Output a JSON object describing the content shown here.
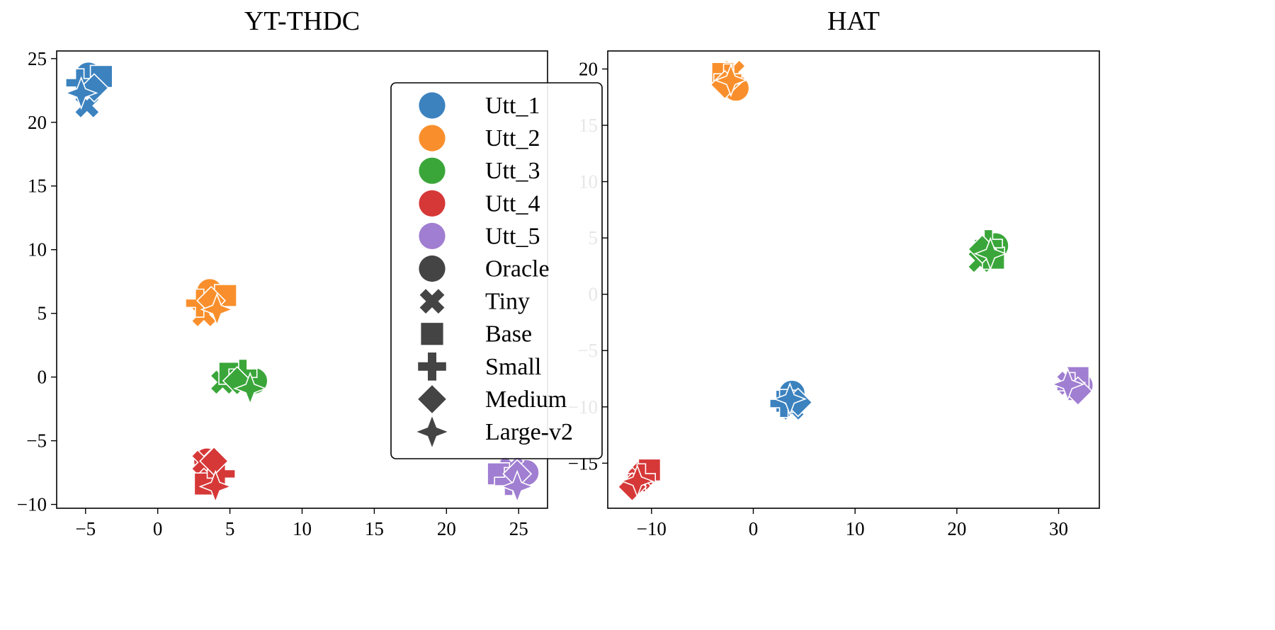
{
  "colors": {
    "utt_1": "#3b82bf",
    "utt_2": "#f98f2c",
    "utt_3": "#3aa63a",
    "utt_4": "#d63838",
    "utt_5": "#a07ed1",
    "style": "#444444"
  },
  "legend": {
    "placement": "upper-right of left panel",
    "hue_entries": [
      {
        "label": "Utt_1",
        "color_key": "utt_1"
      },
      {
        "label": "Utt_2",
        "color_key": "utt_2"
      },
      {
        "label": "Utt_3",
        "color_key": "utt_3"
      },
      {
        "label": "Utt_4",
        "color_key": "utt_4"
      },
      {
        "label": "Utt_5",
        "color_key": "utt_5"
      }
    ],
    "style_entries": [
      {
        "label": "Oracle",
        "marker": "circle"
      },
      {
        "label": "Tiny",
        "marker": "x"
      },
      {
        "label": "Base",
        "marker": "square"
      },
      {
        "label": "Small",
        "marker": "plus"
      },
      {
        "label": "Medium",
        "marker": "diamond"
      },
      {
        "label": "Large-v2",
        "marker": "star4"
      }
    ]
  },
  "chart_data": [
    {
      "type": "scatter",
      "title": "YT-THDC",
      "xlabel": "",
      "ylabel": "",
      "xlim": [
        -7,
        27
      ],
      "ylim": [
        -10.3,
        25.6
      ],
      "xticks": [
        -5,
        0,
        5,
        10,
        15,
        20,
        25
      ],
      "yticks": [
        -10,
        -5,
        0,
        5,
        10,
        15,
        20,
        25
      ],
      "grid": false,
      "series": [
        {
          "name": "Utt_1",
          "color_key": "utt_1",
          "points": [
            {
              "model": "Oracle",
              "x": -4.8,
              "y": 23.7
            },
            {
              "model": "Tiny",
              "x": -4.9,
              "y": 21.3
            },
            {
              "model": "Base",
              "x": -3.9,
              "y": 23.6
            },
            {
              "model": "Small",
              "x": -5.4,
              "y": 23.1
            },
            {
              "model": "Medium",
              "x": -4.4,
              "y": 22.7
            },
            {
              "model": "Large-v2",
              "x": -5.3,
              "y": 22.3
            }
          ]
        },
        {
          "name": "Utt_2",
          "color_key": "utt_2",
          "points": [
            {
              "model": "Oracle",
              "x": 3.6,
              "y": 6.7
            },
            {
              "model": "Tiny",
              "x": 3.2,
              "y": 4.9
            },
            {
              "model": "Base",
              "x": 4.7,
              "y": 6.4
            },
            {
              "model": "Small",
              "x": 2.9,
              "y": 5.8
            },
            {
              "model": "Medium",
              "x": 3.7,
              "y": 6.0
            },
            {
              "model": "Large-v2",
              "x": 4.1,
              "y": 5.3
            }
          ]
        },
        {
          "name": "Utt_3",
          "color_key": "utt_3",
          "points": [
            {
              "model": "Oracle",
              "x": 6.7,
              "y": -0.3
            },
            {
              "model": "Tiny",
              "x": 4.5,
              "y": -0.4
            },
            {
              "model": "Base",
              "x": 5.0,
              "y": 0.3
            },
            {
              "model": "Small",
              "x": 5.9,
              "y": 0.3
            },
            {
              "model": "Medium",
              "x": 5.5,
              "y": -0.3
            },
            {
              "model": "Large-v2",
              "x": 6.4,
              "y": -0.9
            }
          ]
        },
        {
          "name": "Utt_4",
          "color_key": "utt_4",
          "points": [
            {
              "model": "Oracle",
              "x": 3.4,
              "y": -6.6
            },
            {
              "model": "Tiny",
              "x": 3.2,
              "y": -6.7
            },
            {
              "model": "Base",
              "x": 3.3,
              "y": -8.4
            },
            {
              "model": "Small",
              "x": 4.4,
              "y": -7.6
            },
            {
              "model": "Medium",
              "x": 3.9,
              "y": -6.6
            },
            {
              "model": "Large-v2",
              "x": 4.0,
              "y": -8.6
            }
          ]
        },
        {
          "name": "Utt_5",
          "color_key": "utt_5",
          "points": [
            {
              "model": "Oracle",
              "x": 25.5,
              "y": -7.5
            },
            {
              "model": "Tiny",
              "x": 24.5,
              "y": -7.1
            },
            {
              "model": "Base",
              "x": 23.6,
              "y": -7.6
            },
            {
              "model": "Small",
              "x": 24.3,
              "y": -8.2
            },
            {
              "model": "Medium",
              "x": 24.9,
              "y": -7.6
            },
            {
              "model": "Large-v2",
              "x": 24.9,
              "y": -8.6
            }
          ]
        }
      ]
    },
    {
      "type": "scatter",
      "title": "HAT",
      "xlabel": "",
      "ylabel": "",
      "xlim": [
        -14.3,
        34
      ],
      "ylim": [
        -19,
        21.6
      ],
      "xticks": [
        -10,
        0,
        10,
        20,
        30
      ],
      "yticks": [
        -15,
        -10,
        -5,
        0,
        5,
        10,
        15,
        20
      ],
      "grid": false,
      "series": [
        {
          "name": "Utt_1",
          "color_key": "utt_1",
          "points": [
            {
              "model": "Oracle",
              "x": 3.8,
              "y": -8.8
            },
            {
              "model": "Tiny",
              "x": 3.8,
              "y": -10.1
            },
            {
              "model": "Base",
              "x": 3.3,
              "y": -9.5
            },
            {
              "model": "Small",
              "x": 3.0,
              "y": -9.7
            },
            {
              "model": "Medium",
              "x": 4.4,
              "y": -9.6
            },
            {
              "model": "Large-v2",
              "x": 3.6,
              "y": -9.3
            }
          ]
        },
        {
          "name": "Utt_2",
          "color_key": "utt_2",
          "points": [
            {
              "model": "Oracle",
              "x": -1.7,
              "y": 18.3
            },
            {
              "model": "Tiny",
              "x": -2.0,
              "y": 19.7
            },
            {
              "model": "Base",
              "x": -3.0,
              "y": 19.6
            },
            {
              "model": "Small",
              "x": -2.5,
              "y": 19.2
            },
            {
              "model": "Medium",
              "x": -2.8,
              "y": 18.6
            },
            {
              "model": "Large-v2",
              "x": -2.2,
              "y": 19.0
            }
          ]
        },
        {
          "name": "Utt_3",
          "color_key": "utt_3",
          "points": [
            {
              "model": "Oracle",
              "x": 23.8,
              "y": 4.3
            },
            {
              "model": "Tiny",
              "x": 22.3,
              "y": 3.0
            },
            {
              "model": "Base",
              "x": 23.6,
              "y": 3.2
            },
            {
              "model": "Small",
              "x": 23.1,
              "y": 4.5
            },
            {
              "model": "Medium",
              "x": 22.5,
              "y": 4.0
            },
            {
              "model": "Large-v2",
              "x": 23.3,
              "y": 3.6
            }
          ]
        },
        {
          "name": "Utt_4",
          "color_key": "utt_4",
          "points": [
            {
              "model": "Oracle",
              "x": -11.2,
              "y": -16.4
            },
            {
              "model": "Tiny",
              "x": -10.7,
              "y": -15.9
            },
            {
              "model": "Base",
              "x": -10.2,
              "y": -15.6
            },
            {
              "model": "Small",
              "x": -11.0,
              "y": -16.3
            },
            {
              "model": "Medium",
              "x": -11.9,
              "y": -17.1
            },
            {
              "model": "Large-v2",
              "x": -11.4,
              "y": -16.6
            }
          ]
        },
        {
          "name": "Utt_5",
          "color_key": "utt_5",
          "points": [
            {
              "model": "Oracle",
              "x": 32.1,
              "y": -8.1
            },
            {
              "model": "Tiny",
              "x": 31.0,
              "y": -7.9
            },
            {
              "model": "Base",
              "x": 31.9,
              "y": -7.4
            },
            {
              "model": "Small",
              "x": 31.2,
              "y": -8.2
            },
            {
              "model": "Medium",
              "x": 31.9,
              "y": -8.6
            },
            {
              "model": "Large-v2",
              "x": 30.9,
              "y": -8.0
            }
          ]
        }
      ]
    }
  ]
}
